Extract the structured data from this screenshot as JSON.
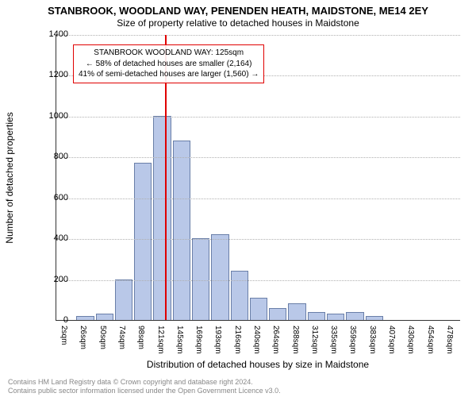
{
  "title_line1": "STANBROOK, WOODLAND WAY, PENENDEN HEATH, MAIDSTONE, ME14 2EY",
  "title_line2": "Size of property relative to detached houses in Maidstone",
  "ylabel": "Number of detached properties",
  "xlabel": "Distribution of detached houses by size in Maidstone",
  "ylim": [
    0,
    1400
  ],
  "ytick_step": 200,
  "yticks": [
    0,
    200,
    400,
    600,
    800,
    1000,
    1200,
    1400
  ],
  "x_categories": [
    "2sqm",
    "26sqm",
    "50sqm",
    "74sqm",
    "98sqm",
    "121sqm",
    "145sqm",
    "169sqm",
    "193sqm",
    "216sqm",
    "240sqm",
    "264sqm",
    "288sqm",
    "312sqm",
    "335sqm",
    "359sqm",
    "383sqm",
    "407sqm",
    "430sqm",
    "454sqm",
    "478sqm"
  ],
  "bar_values": [
    0,
    20,
    30,
    200,
    770,
    1000,
    880,
    400,
    420,
    240,
    110,
    60,
    80,
    40,
    30,
    40,
    20,
    0,
    0,
    0,
    0
  ],
  "bar_color": "#b9c8e8",
  "bar_border": "#6a7fa8",
  "grid_color": "#b0b0b0",
  "bar_width_pct": 0.92,
  "marker": {
    "between_index": [
      5,
      6
    ],
    "fraction": 0.15,
    "color": "#e00000"
  },
  "annotation": {
    "line1": "STANBROOK WOODLAND WAY: 125sqm",
    "line2": "← 58% of detached houses are smaller (2,164)",
    "line3": "41% of semi-detached houses are larger (1,560) →",
    "border_color": "#e00000"
  },
  "footer_line1": "Contains HM Land Registry data © Crown copyright and database right 2024.",
  "footer_line2": "Contains public sector information licensed under the Open Government Licence v3.0.",
  "chart_type": "histogram",
  "background_color": "#ffffff",
  "axis_color": "#333333",
  "label_fontsize": 12,
  "tick_fontsize": 11
}
